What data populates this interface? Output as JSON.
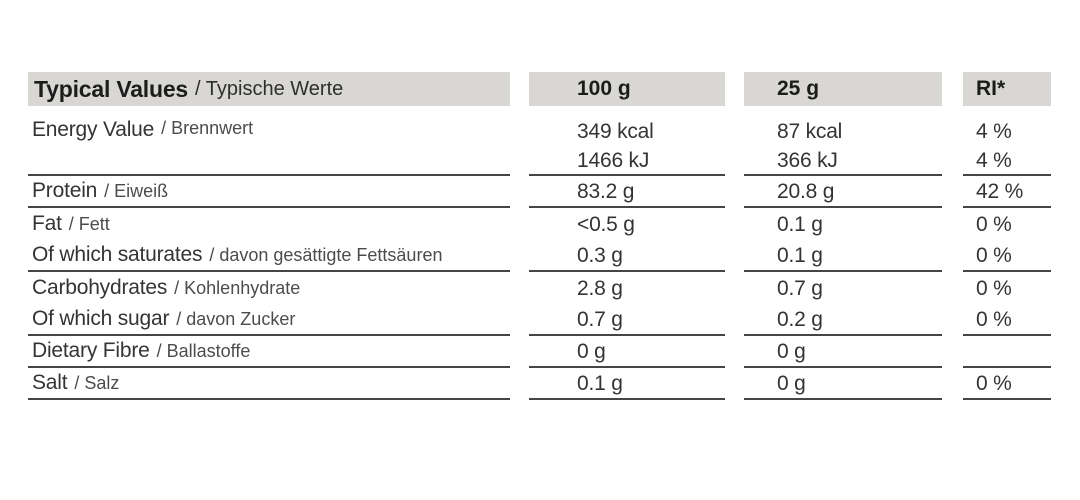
{
  "table": {
    "header": {
      "label_en": "Typical Values",
      "label_de": "/ Typische Werte",
      "col_100": "100 g",
      "col_25": "25 g",
      "col_ri": "RI*"
    },
    "rows": [
      {
        "name_en": "Energy Value",
        "name_de": "/ Brennwert",
        "v100": [
          "349 kcal",
          "1466 kJ"
        ],
        "v25": [
          "87 kcal",
          "366 kJ"
        ],
        "ri": [
          "4 %",
          "4 %"
        ],
        "section_end": true,
        "two_line": true
      },
      {
        "name_en": "Protein",
        "name_de": "/ Eiweiß",
        "v100": [
          "83.2 g"
        ],
        "v25": [
          "20.8 g"
        ],
        "ri": [
          "42 %"
        ],
        "section_end": true,
        "two_line": false
      },
      {
        "name_en": "Fat",
        "name_de": "/ Fett",
        "v100": [
          "<0.5 g"
        ],
        "v25": [
          "0.1 g"
        ],
        "ri": [
          "0 %"
        ],
        "section_end": false,
        "two_line": false
      },
      {
        "name_en": "Of which saturates",
        "name_de": "/ davon gesättigte Fettsäuren",
        "v100": [
          "0.3 g"
        ],
        "v25": [
          "0.1 g"
        ],
        "ri": [
          "0 %"
        ],
        "section_end": true,
        "two_line": false
      },
      {
        "name_en": "Carbohydrates",
        "name_de": "/ Kohlenhydrate",
        "v100": [
          "2.8 g"
        ],
        "v25": [
          "0.7 g"
        ],
        "ri": [
          "0 %"
        ],
        "section_end": false,
        "two_line": false
      },
      {
        "name_en": "Of which sugar",
        "name_de": "/ davon Zucker",
        "v100": [
          "0.7 g"
        ],
        "v25": [
          "0.2 g"
        ],
        "ri": [
          "0 %"
        ],
        "section_end": true,
        "two_line": false
      },
      {
        "name_en": "Dietary Fibre",
        "name_de": "/ Ballastoffe",
        "v100": [
          "0 g"
        ],
        "v25": [
          "0 g"
        ],
        "ri": [
          ""
        ],
        "section_end": true,
        "two_line": false
      },
      {
        "name_en": "Salt",
        "name_de": "/ Salz",
        "v100": [
          "0.1 g"
        ],
        "v25": [
          "0 g"
        ],
        "ri": [
          "0 %"
        ],
        "section_end": true,
        "two_line": false
      }
    ],
    "colors": {
      "header_bg": "#d8d7d3",
      "rule": "#454545",
      "text": "#343434",
      "text_secondary": "#4c4c4c",
      "header_text": "#1c1c1c"
    }
  }
}
